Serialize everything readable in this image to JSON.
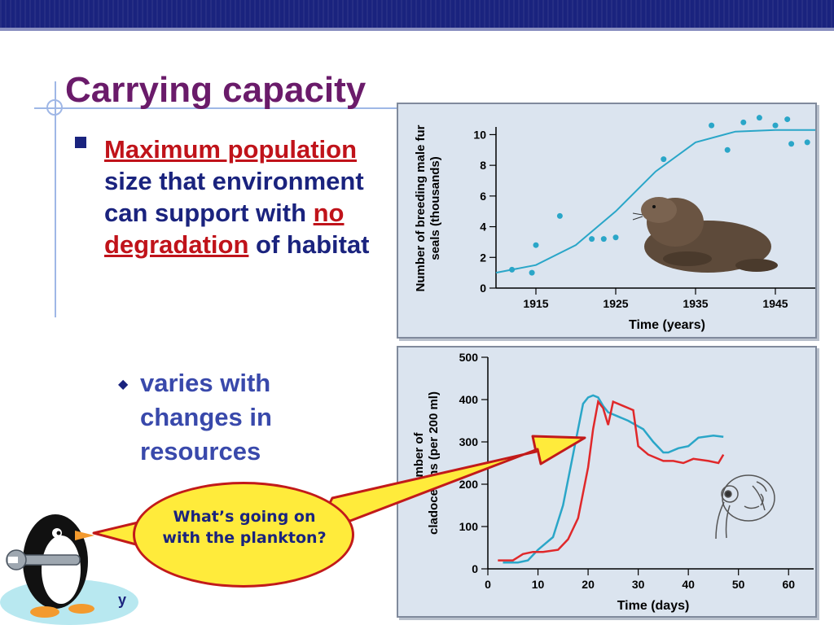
{
  "slide": {
    "title": "Carrying capacity",
    "bullet": {
      "highlight1": "Maximum population",
      "text1": " size that environment can support with ",
      "highlight2": "no degradation",
      "text2": " of habitat"
    },
    "sub_bullet": "varies with changes in resources",
    "callout": "What’s going on with the plankton?",
    "footer_fragment": "y"
  },
  "colors": {
    "title": "#6a1b6a",
    "body": "#1a237e",
    "highlight": "#c0131a",
    "series_blue": "#2aa6c8",
    "series_red": "#e0282a",
    "callout_fill": "#ffeb3b",
    "callout_border": "#c21a1a"
  },
  "icons": [
    "penguin-icon",
    "wrench-icon",
    "fur-seal-icon",
    "cladoceran-icon"
  ],
  "chart_data": [
    {
      "type": "scatter",
      "xlabel": "Time (years)",
      "ylabel": "Number of breeding male fur seals (thousands)",
      "xlim": [
        1910,
        1950
      ],
      "ylim": [
        0,
        10.5
      ],
      "xticks": [
        1915,
        1925,
        1935,
        1945
      ],
      "yticks": [
        0,
        2,
        4,
        6,
        8,
        10
      ],
      "points": [
        {
          "x": 1912,
          "y": 1.2
        },
        {
          "x": 1914.5,
          "y": 1.0
        },
        {
          "x": 1915,
          "y": 2.8
        },
        {
          "x": 1918,
          "y": 4.7
        },
        {
          "x": 1922,
          "y": 3.2
        },
        {
          "x": 1923.5,
          "y": 3.2
        },
        {
          "x": 1925,
          "y": 3.3
        },
        {
          "x": 1931,
          "y": 8.4
        },
        {
          "x": 1937,
          "y": 10.6
        },
        {
          "x": 1939,
          "y": 9.0
        },
        {
          "x": 1941,
          "y": 10.8
        },
        {
          "x": 1943,
          "y": 11.1
        },
        {
          "x": 1945,
          "y": 10.6
        },
        {
          "x": 1946.5,
          "y": 11.0
        },
        {
          "x": 1947,
          "y": 9.4
        },
        {
          "x": 1949,
          "y": 9.5
        }
      ],
      "fit_curve": {
        "x": [
          1910,
          1915,
          1920,
          1925,
          1930,
          1935,
          1940,
          1945,
          1950
        ],
        "y": [
          1.0,
          1.5,
          2.8,
          5.0,
          7.6,
          9.5,
          10.2,
          10.3,
          10.3
        ]
      },
      "grid": false
    },
    {
      "type": "line",
      "xlabel": "Time (days)",
      "ylabel": "Number of cladocerans (per 200 ml)",
      "xlim": [
        0,
        65
      ],
      "ylim": [
        0,
        500
      ],
      "xticks": [
        0,
        10,
        20,
        30,
        40,
        50,
        60
      ],
      "yticks": [
        0,
        100,
        200,
        300,
        400,
        500
      ],
      "series": [
        {
          "color": "blue",
          "x": [
            3,
            6,
            8,
            10,
            13,
            15,
            17,
            19,
            20,
            21,
            22,
            23,
            24,
            26,
            28,
            31,
            33,
            35,
            36,
            38,
            40,
            42,
            45,
            47
          ],
          "y": [
            15,
            15,
            20,
            45,
            75,
            150,
            270,
            390,
            405,
            410,
            405,
            385,
            370,
            360,
            350,
            330,
            300,
            275,
            275,
            285,
            290,
            310,
            315,
            312
          ]
        },
        {
          "color": "red",
          "x": [
            2,
            5,
            7,
            9,
            11,
            14,
            16,
            18,
            20,
            21,
            22,
            23,
            24,
            25,
            27,
            29,
            30,
            32,
            35,
            37,
            39,
            41,
            44,
            46,
            47
          ],
          "y": [
            20,
            20,
            35,
            40,
            40,
            45,
            70,
            120,
            240,
            330,
            395,
            380,
            340,
            395,
            385,
            375,
            290,
            270,
            255,
            255,
            250,
            260,
            255,
            250,
            270
          ]
        }
      ],
      "grid": false
    }
  ]
}
